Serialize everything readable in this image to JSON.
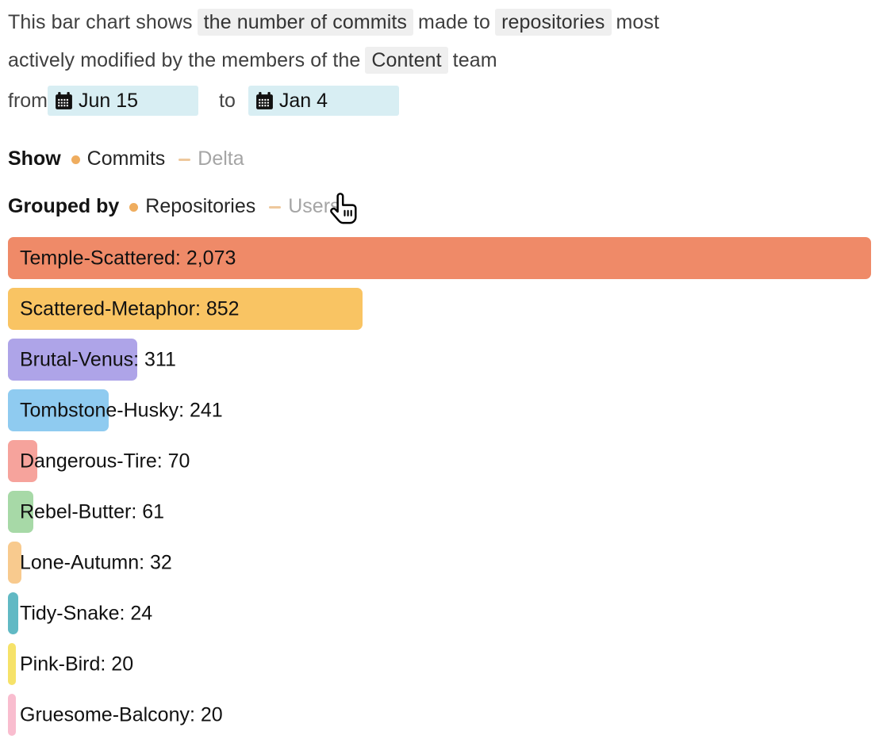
{
  "header": {
    "seg1": "This bar chart shows",
    "hl1": "the number of commits",
    "seg2": "made to",
    "hl2": "repositories",
    "seg3a": "most",
    "seg3b": "actively modified by the members of the",
    "hl3": "Content",
    "seg4": "team",
    "from_label": "from",
    "to_label": "to",
    "from_date": "Jun 15",
    "to_date": "Jan 4"
  },
  "controls": {
    "show": {
      "label": "Show",
      "active": "Commits",
      "inactive": "Delta"
    },
    "grouped_by": {
      "label": "Grouped by",
      "active": "Repositories",
      "inactive": "Users"
    }
  },
  "colors": {
    "active_bullet": "#efad5f",
    "inactive_dash": "#eec89c",
    "inactive_text": "#a5a5a5",
    "highlight_bg": "#efefef",
    "date_chip_bg": "#d8eef3"
  },
  "chart_data": {
    "type": "bar",
    "orientation": "horizontal",
    "value_format": "Name: value",
    "max_value": 2073,
    "bars": [
      {
        "name": "Temple-Scattered",
        "value": 2073,
        "label": "Temple-Scattered: 2,073",
        "color": "#ef8a68"
      },
      {
        "name": "Scattered-Metaphor",
        "value": 852,
        "label": "Scattered-Metaphor: 852",
        "color": "#f9c463"
      },
      {
        "name": "Brutal-Venus",
        "value": 311,
        "label": "Brutal-Venus: 311",
        "color": "#aea4e8"
      },
      {
        "name": "Tombstone-Husky",
        "value": 241,
        "label": "Tombstone-Husky: 241",
        "color": "#8fcbf0"
      },
      {
        "name": "Dangerous-Tire",
        "value": 70,
        "label": "Dangerous-Tire: 70",
        "color": "#f6a39c"
      },
      {
        "name": "Rebel-Butter",
        "value": 61,
        "label": "Rebel-Butter: 61",
        "color": "#a7d9a7"
      },
      {
        "name": "Lone-Autumn",
        "value": 32,
        "label": "Lone-Autumn: 32",
        "color": "#f8ca8e"
      },
      {
        "name": "Tidy-Snake",
        "value": 24,
        "label": "Tidy-Snake: 24",
        "color": "#61b9c4"
      },
      {
        "name": "Pink-Bird",
        "value": 20,
        "label": "Pink-Bird: 20",
        "color": "#f6e269"
      },
      {
        "name": "Gruesome-Balcony",
        "value": 20,
        "label": "Gruesome-Balcony: 20",
        "color": "#f9bdcf"
      }
    ]
  }
}
